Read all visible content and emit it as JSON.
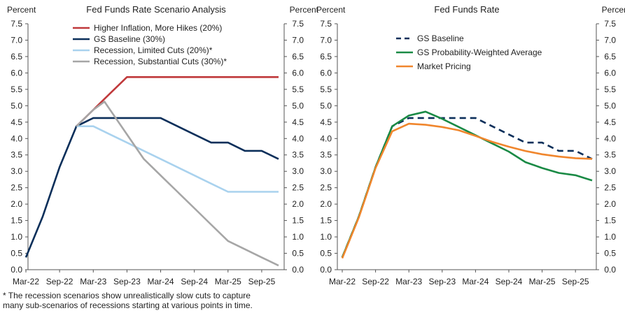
{
  "chart_data": [
    {
      "type": "line",
      "title": "Fed Funds Rate Scenario Analysis",
      "ylabel_left": "Percent",
      "ylabel_right": "Percent",
      "ylim": [
        0,
        7.5
      ],
      "yticks": [
        "0.0",
        "0.5",
        "1.0",
        "1.5",
        "2.0",
        "2.5",
        "3.0",
        "3.5",
        "4.0",
        "4.5",
        "5.0",
        "5.5",
        "6.0",
        "6.5",
        "7.0",
        "7.5"
      ],
      "x_ticks": [
        "Mar-22",
        "Sep-22",
        "Mar-23",
        "Sep-23",
        "Mar-24",
        "Sep-24",
        "Mar-25",
        "Sep-25"
      ],
      "x_tick_months": [
        0,
        6,
        12,
        18,
        24,
        30,
        36,
        42
      ],
      "x_range_months": [
        0,
        45
      ],
      "grid": false,
      "legend": "top-left",
      "series": [
        {
          "name": "Higher Inflation, More Hikes (20%)",
          "color": "#c0393b",
          "x": [
            9,
            12,
            15,
            18,
            21,
            24,
            27,
            30,
            33,
            36,
            39,
            42,
            45
          ],
          "y": [
            4.375,
            4.875,
            5.375,
            5.875,
            5.875,
            5.875,
            5.875,
            5.875,
            5.875,
            5.875,
            5.875,
            5.875,
            5.875
          ]
        },
        {
          "name": "GS Baseline (30%)",
          "color": "#0b2f5a",
          "x": [
            0,
            3,
            6,
            9,
            12,
            15,
            18,
            21,
            24,
            27,
            30,
            33,
            36,
            39,
            42,
            45
          ],
          "y": [
            0.375,
            1.625,
            3.125,
            4.375,
            4.625,
            4.625,
            4.625,
            4.625,
            4.625,
            4.375,
            4.125,
            3.875,
            3.875,
            3.625,
            3.625,
            3.375
          ]
        },
        {
          "name": "Recession, Limited Cuts (20%)*",
          "color": "#a9d2ee",
          "x": [
            9,
            12,
            15,
            18,
            21,
            24,
            27,
            30,
            33,
            36,
            39,
            42,
            45
          ],
          "y": [
            4.375,
            4.375,
            4.125,
            3.875,
            3.625,
            3.375,
            3.125,
            2.875,
            2.625,
            2.375,
            2.375,
            2.375,
            2.375
          ]
        },
        {
          "name": "Recession, Substantial Cuts (30%)*",
          "color": "#a6a6a6",
          "x": [
            9,
            12,
            14,
            15,
            18,
            21,
            24,
            27,
            30,
            33,
            36,
            39,
            42,
            45
          ],
          "y": [
            4.375,
            4.875,
            5.125,
            4.875,
            4.125,
            3.375,
            2.875,
            2.375,
            1.875,
            1.375,
            0.875,
            0.625,
            0.375,
            0.125
          ]
        }
      ]
    },
    {
      "type": "line",
      "title": "Fed Funds Rate",
      "ylabel_left": "Percent",
      "ylabel_right": "Percent",
      "ylim": [
        0,
        7.5
      ],
      "yticks": [
        "0.0",
        "0.5",
        "1.0",
        "1.5",
        "2.0",
        "2.5",
        "3.0",
        "3.5",
        "4.0",
        "4.5",
        "5.0",
        "5.5",
        "6.0",
        "6.5",
        "7.0",
        "7.5"
      ],
      "x_ticks": [
        "Mar-22",
        "Sep-22",
        "Mar-23",
        "Sep-23",
        "Mar-24",
        "Sep-24",
        "Mar-25",
        "Sep-25"
      ],
      "x_tick_months": [
        0,
        6,
        12,
        18,
        24,
        30,
        36,
        42
      ],
      "x_range_months": [
        0,
        45
      ],
      "grid": false,
      "legend": "top-left",
      "series": [
        {
          "name": "GS Baseline",
          "color": "#0b2f5a",
          "dashed": true,
          "x": [
            0,
            3,
            6,
            9,
            12,
            15,
            18,
            21,
            24,
            27,
            30,
            33,
            36,
            39,
            42,
            45
          ],
          "y": [
            0.375,
            1.625,
            3.125,
            4.375,
            4.625,
            4.625,
            4.625,
            4.625,
            4.625,
            4.375,
            4.125,
            3.875,
            3.875,
            3.625,
            3.625,
            3.375
          ]
        },
        {
          "name": "GS Probability-Weighted Average",
          "color": "#1a8a45",
          "x": [
            0,
            3,
            6,
            9,
            12,
            15,
            18,
            21,
            24,
            27,
            30,
            33,
            36,
            39,
            42,
            45
          ],
          "y": [
            0.375,
            1.625,
            3.125,
            4.375,
            4.7,
            4.82,
            4.6,
            4.35,
            4.1,
            3.85,
            3.6,
            3.28,
            3.1,
            2.95,
            2.88,
            2.72
          ]
        },
        {
          "name": "Market Pricing",
          "color": "#f0862d",
          "x": [
            0,
            3,
            6,
            9,
            12,
            15,
            18,
            21,
            24,
            27,
            30,
            33,
            36,
            39,
            42,
            45
          ],
          "y": [
            0.35,
            1.6,
            3.1,
            4.22,
            4.45,
            4.42,
            4.35,
            4.25,
            4.08,
            3.9,
            3.75,
            3.62,
            3.52,
            3.45,
            3.4,
            3.38
          ]
        }
      ]
    }
  ],
  "footnote": {
    "line1": "* The recession scenarios show unrealistically slow cuts to capture",
    "line2": "many sub-scenarios of recessions starting at various points in time."
  }
}
